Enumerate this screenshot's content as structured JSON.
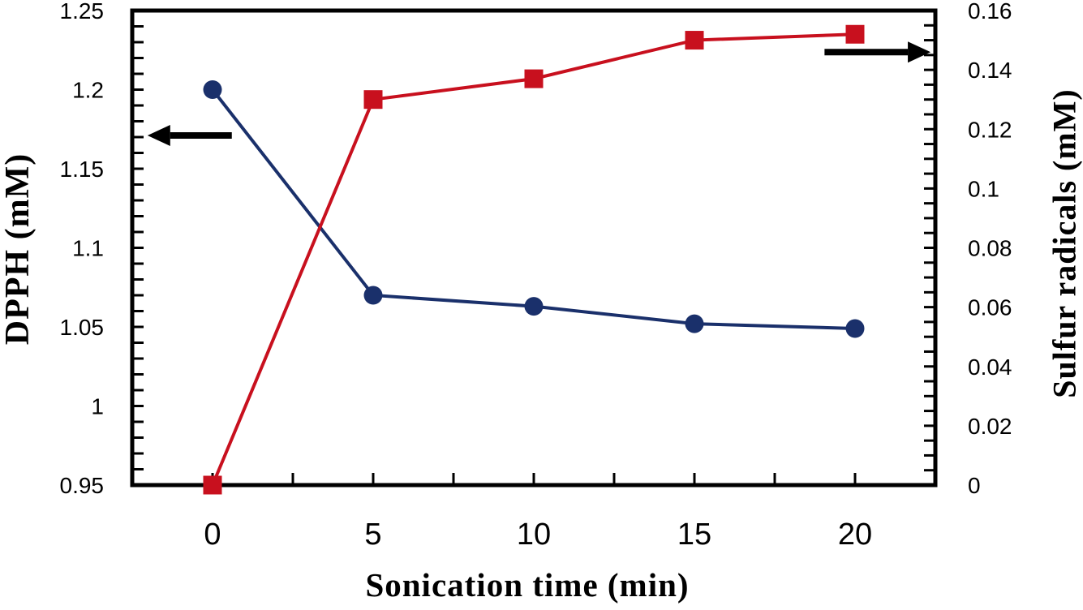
{
  "chart_data": {
    "type": "line",
    "title": "",
    "xlabel": "Sonication time (min)",
    "x_categories": [
      "0",
      "5",
      "10",
      "15",
      "20"
    ],
    "left_axis": {
      "label": "DPPH (mM)",
      "min": 0.95,
      "max": 1.25,
      "major_step": 0.05,
      "minor_step": 0.01,
      "tick_labels": [
        "1.25",
        "1.2",
        "1.15",
        "1.1",
        "1.05",
        "1",
        "0.95"
      ]
    },
    "right_axis": {
      "label": "Sulfur radicals (mM)",
      "min": 0,
      "max": 0.16,
      "major_step": 0.02,
      "minor_step": 0.005,
      "tick_labels": [
        "0.16",
        "0.14",
        "0.12",
        "0.1",
        "0.08",
        "0.06",
        "0.04",
        "0.02",
        "0"
      ]
    },
    "series": [
      {
        "name": "DPPH",
        "axis": "left",
        "marker": "circle",
        "color": "#1a306b",
        "x": [
          0,
          5,
          10,
          15,
          20
        ],
        "values": [
          1.2,
          1.07,
          1.063,
          1.052,
          1.049
        ]
      },
      {
        "name": "Sulfur radicals",
        "axis": "right",
        "marker": "square",
        "color": "#c8101e",
        "x": [
          0,
          5,
          10,
          15,
          20
        ],
        "values": [
          0,
          0.13,
          0.137,
          0.15,
          0.152
        ]
      }
    ],
    "annotations": [
      {
        "shape": "arrow",
        "points_to": "left-axis",
        "axis": "left",
        "y_value": 1.171,
        "x_start_frac": 0.124,
        "x_end_frac": 0.019
      },
      {
        "shape": "arrow",
        "points_to": "right-axis",
        "axis": "right",
        "y_value": 0.146,
        "x_start_frac": 0.862,
        "x_end_frac": 0.994
      }
    ],
    "grid": false,
    "legend": "none",
    "colors": {
      "frame": "#000000",
      "text": "#000000",
      "background": "#ffffff"
    }
  }
}
